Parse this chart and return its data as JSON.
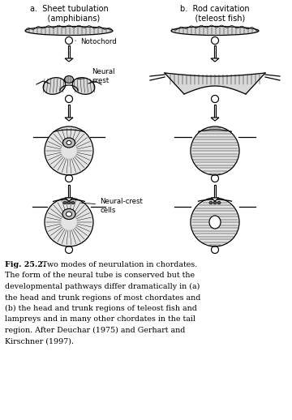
{
  "title_a": "a.  Sheet tubulation\n    (amphibians)",
  "title_b": "b.  Rod cavitation\n    (teleost fish)",
  "label_notochord": "Notochord",
  "label_neural_crest": "Neural\ncrest",
  "label_neural_crest_cells": "Neural-crest\ncells",
  "caption_bold": "Fig. 25.2.",
  "caption_text": "  Two modes of neurulation in chordates. The form of the neural tube is conserved but the developmental pathways differ dramatically in (a) the head and trunk regions of most chordates and (b) the head and trunk regions of teleost fish and lampreys and in many other chordates in the tail region. After Deuchar (1975) and Gerhart and Kirschner (1997).",
  "bg_color": "#ffffff",
  "col_a": 85,
  "col_b": 265,
  "figsize": [
    3.6,
    5.18
  ],
  "dpi": 100
}
